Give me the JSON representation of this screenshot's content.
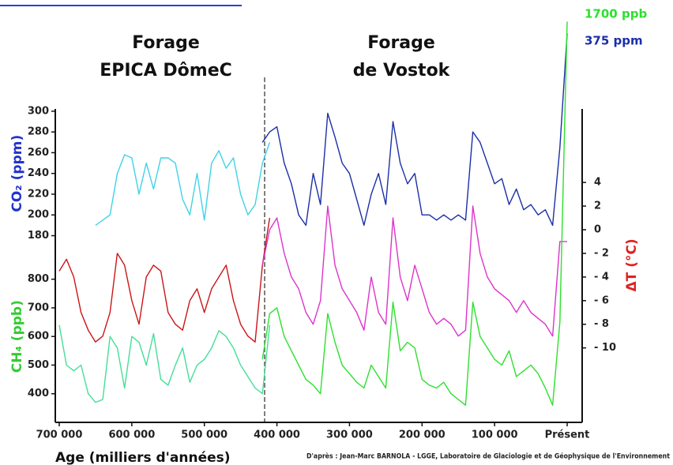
{
  "headings": [
    [
      "Forage",
      "EPICA DômeC"
    ],
    [
      "Forage",
      "de Vostok"
    ]
  ],
  "credit": "D'après : Jean-Marc BARNOLA - LGGE, Laboratoire de Glaciologie et de Géophysique de l'Environnement",
  "chart_data": [
    {
      "type": "line",
      "ylabel": "CO₂ (ppm)",
      "ylabel_color": "#2233cc",
      "axis_side": "left",
      "xlim": [
        700000,
        0
      ],
      "ylim": [
        0,
        392
      ],
      "yticks": [
        180,
        200,
        220,
        240,
        260,
        280,
        300
      ],
      "annotation": "375 ppm",
      "x": [
        700000,
        690000,
        680000,
        670000,
        660000,
        650000,
        640000,
        630000,
        620000,
        610000,
        600000,
        590000,
        580000,
        570000,
        560000,
        550000,
        540000,
        530000,
        520000,
        510000,
        500000,
        490000,
        480000,
        470000,
        460000,
        450000,
        440000,
        430000,
        420000,
        410000,
        400000,
        390000,
        380000,
        370000,
        360000,
        350000,
        340000,
        330000,
        320000,
        310000,
        300000,
        290000,
        280000,
        270000,
        260000,
        250000,
        240000,
        230000,
        220000,
        210000,
        200000,
        190000,
        180000,
        170000,
        160000,
        150000,
        140000,
        130000,
        120000,
        110000,
        100000,
        90000,
        80000,
        70000,
        60000,
        50000,
        40000,
        30000,
        20000,
        10000,
        0
      ],
      "series": [
        {
          "color": "#3fd3e6",
          "values": [
            null,
            null,
            null,
            null,
            null,
            190,
            195,
            200,
            240,
            258,
            255,
            220,
            250,
            225,
            255,
            255,
            250,
            215,
            200,
            240,
            195,
            250,
            262,
            245,
            255,
            220,
            200,
            210,
            250,
            270,
            null,
            null,
            null,
            null,
            null,
            null,
            null,
            null,
            null,
            null,
            null,
            null,
            null,
            null,
            null,
            null,
            null,
            null,
            null,
            null,
            null,
            null,
            null,
            null,
            null,
            null,
            null,
            null,
            null,
            null,
            null,
            null,
            null,
            null,
            null,
            null,
            null,
            null,
            null,
            null,
            null
          ]
        },
        {
          "color": "#1a2fa8",
          "values": [
            null,
            null,
            null,
            null,
            null,
            null,
            null,
            null,
            null,
            null,
            null,
            null,
            null,
            null,
            null,
            null,
            null,
            null,
            null,
            null,
            null,
            null,
            null,
            null,
            null,
            null,
            null,
            null,
            270,
            280,
            285,
            250,
            230,
            200,
            190,
            240,
            210,
            298,
            275,
            250,
            240,
            215,
            190,
            220,
            240,
            210,
            290,
            250,
            230,
            240,
            200,
            200,
            195,
            200,
            195,
            200,
            195,
            280,
            270,
            250,
            230,
            235,
            210,
            225,
            205,
            210,
            200,
            205,
            190,
            265,
            375
          ]
        }
      ]
    },
    {
      "type": "line",
      "ylabel": "ΔT (°C)",
      "ylabel_color": "#dd2222",
      "axis_side": "right",
      "xlim": [
        700000,
        0
      ],
      "ylim": [
        -16.3,
        18.1
      ],
      "yticks": [
        4,
        2,
        0,
        {
          "value": -2,
          "label": "- 2"
        },
        {
          "value": -4,
          "label": "- 4"
        },
        {
          "value": -6,
          "label": "- 6"
        },
        {
          "value": -8,
          "label": "- 8"
        },
        {
          "value": -10,
          "label": "- 10"
        }
      ],
      "x": [
        700000,
        690000,
        680000,
        670000,
        660000,
        650000,
        640000,
        630000,
        620000,
        610000,
        600000,
        590000,
        580000,
        570000,
        560000,
        550000,
        540000,
        530000,
        520000,
        510000,
        500000,
        490000,
        480000,
        470000,
        460000,
        450000,
        440000,
        430000,
        420000,
        410000,
        400000,
        390000,
        380000,
        370000,
        360000,
        350000,
        340000,
        330000,
        320000,
        310000,
        300000,
        290000,
        280000,
        270000,
        260000,
        250000,
        240000,
        230000,
        220000,
        210000,
        200000,
        190000,
        180000,
        170000,
        160000,
        150000,
        140000,
        130000,
        120000,
        110000,
        100000,
        90000,
        80000,
        70000,
        60000,
        50000,
        40000,
        30000,
        20000,
        10000,
        0
      ],
      "series": [
        {
          "color": "#cc1515",
          "values": [
            -3.5,
            -2.5,
            -4,
            -7,
            -8.5,
            -9.5,
            -9,
            -7,
            -2,
            -3,
            -6,
            -8,
            -4,
            -3,
            -3.5,
            -7,
            -8,
            -8.5,
            -6,
            -5,
            -7,
            -5,
            -4,
            -3,
            -6,
            -8,
            -9,
            -9.5,
            -3,
            1,
            null,
            null,
            null,
            null,
            null,
            null,
            null,
            null,
            null,
            null,
            null,
            null,
            null,
            null,
            null,
            null,
            null,
            null,
            null,
            null,
            null,
            null,
            null,
            null,
            null,
            null,
            null,
            null,
            null,
            null,
            null,
            null,
            null,
            null,
            null,
            null,
            null,
            null,
            null,
            null,
            null
          ]
        },
        {
          "color": "#dd33cc",
          "values": [
            null,
            null,
            null,
            null,
            null,
            null,
            null,
            null,
            null,
            null,
            null,
            null,
            null,
            null,
            null,
            null,
            null,
            null,
            null,
            null,
            null,
            null,
            null,
            null,
            null,
            null,
            null,
            null,
            -3,
            0,
            1,
            -2,
            -4,
            -5,
            -7,
            -8,
            -6,
            2,
            -3,
            -5,
            -6,
            -7,
            -8.5,
            -4,
            -7,
            -8,
            1,
            -4,
            -6,
            -3,
            -5,
            -7,
            -8,
            -7.5,
            -8,
            -9,
            -8.5,
            2,
            -2,
            -4,
            -5,
            -5.5,
            -6,
            -7,
            -6,
            -7,
            -7.5,
            -8,
            -9,
            -1,
            -1
          ]
        }
      ]
    },
    {
      "type": "line",
      "ylabel": "CH₄ (ppb)",
      "ylabel_color": "#33cc33",
      "axis_side": "left",
      "xlim": [
        700000,
        0
      ],
      "ylim": [
        300,
        1720
      ],
      "yticks": [
        400,
        500,
        600,
        700,
        800
      ],
      "annotation": "1700 ppb",
      "xlabel": "Age (milliers d'années)",
      "xticks": [
        {
          "value": 700000,
          "label": "700 000"
        },
        {
          "value": 600000,
          "label": "600 000"
        },
        {
          "value": 500000,
          "label": "500 000"
        },
        {
          "value": 400000,
          "label": "400 000"
        },
        {
          "value": 300000,
          "label": "300 000"
        },
        {
          "value": 200000,
          "label": "200 000"
        },
        {
          "value": 100000,
          "label": "100 000"
        },
        {
          "value": 0,
          "label": "Présent"
        }
      ],
      "x": [
        700000,
        690000,
        680000,
        670000,
        660000,
        650000,
        640000,
        630000,
        620000,
        610000,
        600000,
        590000,
        580000,
        570000,
        560000,
        550000,
        540000,
        530000,
        520000,
        510000,
        500000,
        490000,
        480000,
        470000,
        460000,
        450000,
        440000,
        430000,
        420000,
        410000,
        400000,
        390000,
        380000,
        370000,
        360000,
        350000,
        340000,
        330000,
        320000,
        310000,
        300000,
        290000,
        280000,
        270000,
        260000,
        250000,
        240000,
        230000,
        220000,
        210000,
        200000,
        190000,
        180000,
        170000,
        160000,
        150000,
        140000,
        130000,
        120000,
        110000,
        100000,
        90000,
        80000,
        70000,
        60000,
        50000,
        40000,
        30000,
        20000,
        10000,
        0
      ],
      "series": [
        {
          "color": "#45de98",
          "values": [
            640,
            500,
            480,
            500,
            400,
            370,
            380,
            600,
            560,
            420,
            600,
            580,
            500,
            610,
            450,
            430,
            500,
            560,
            440,
            500,
            520,
            560,
            620,
            600,
            560,
            500,
            460,
            420,
            400,
            640,
            null,
            null,
            null,
            null,
            null,
            null,
            null,
            null,
            null,
            null,
            null,
            null,
            null,
            null,
            null,
            null,
            null,
            null,
            null,
            null,
            null,
            null,
            null,
            null,
            null,
            null,
            null,
            null,
            null,
            null,
            null,
            null,
            null,
            null,
            null,
            null,
            null,
            null,
            null,
            null,
            null
          ]
        },
        {
          "color": "#2ee02e",
          "values": [
            null,
            null,
            null,
            null,
            null,
            null,
            null,
            null,
            null,
            null,
            null,
            null,
            null,
            null,
            null,
            null,
            null,
            null,
            null,
            null,
            null,
            null,
            null,
            null,
            null,
            null,
            null,
            null,
            520,
            680,
            700,
            600,
            550,
            500,
            450,
            430,
            400,
            680,
            580,
            500,
            470,
            440,
            420,
            500,
            460,
            420,
            720,
            550,
            580,
            560,
            450,
            430,
            420,
            440,
            400,
            380,
            360,
            720,
            600,
            560,
            520,
            500,
            550,
            460,
            480,
            500,
            470,
            420,
            360,
            650,
            1700
          ]
        }
      ]
    }
  ]
}
